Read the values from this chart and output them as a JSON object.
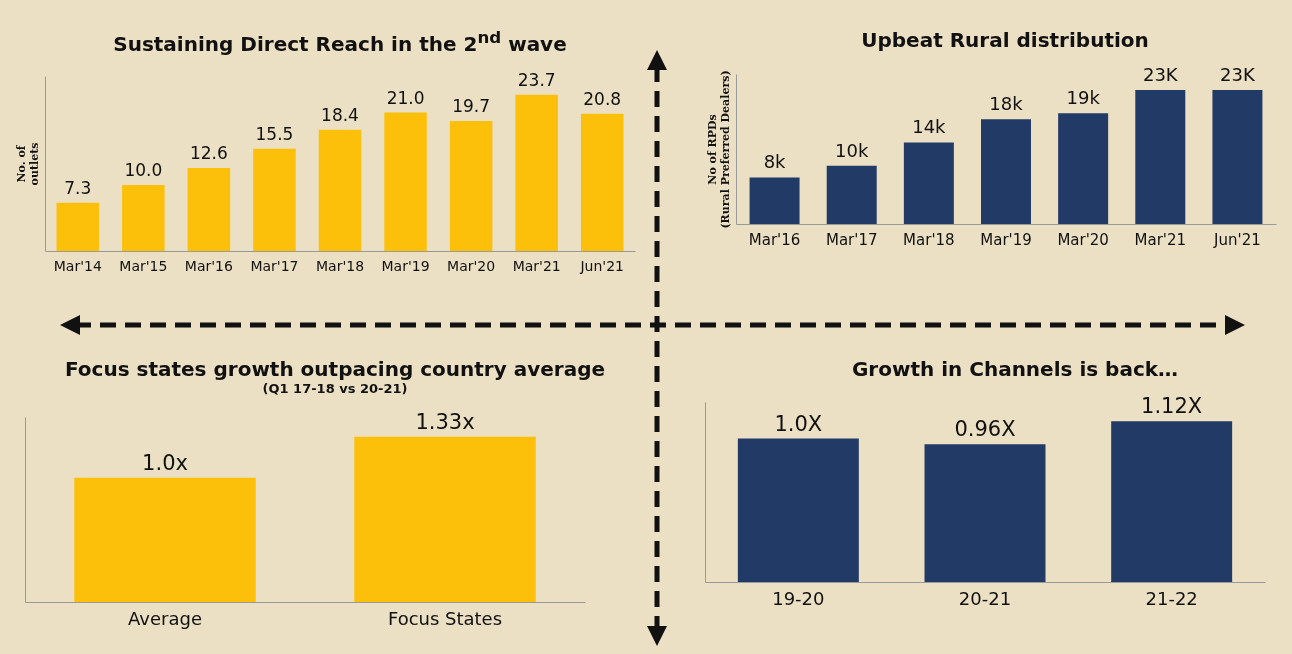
{
  "chart_data": [
    {
      "type": "bar",
      "title": "Sustaining Direct Reach in the 2$^{nd}$ wave",
      "ylabel": "No. of outlets",
      "categories": [
        "Mar'14",
        "Mar'15",
        "Mar'16",
        "Mar'17",
        "Mar'18",
        "Mar'19",
        "Mar'20",
        "Mar'21",
        "Jun'21"
      ],
      "values": [
        7.3,
        10.0,
        12.6,
        15.5,
        18.4,
        21.0,
        19.7,
        23.7,
        20.8
      ],
      "value_labels": [
        "7.3",
        "10.0",
        "12.6",
        "15.5",
        "18.4",
        "21.0",
        "19.7",
        "23.7",
        "20.8"
      ],
      "color": "#fcc00a",
      "tick_labels": "x"
    },
    {
      "type": "bar",
      "title": "Upbeat Rural distribution",
      "ylabel": "No of RPDs (Rural Preferred Dealers)",
      "categories": [
        "Mar'16",
        "Mar'17",
        "Mar'18",
        "Mar'19",
        "Mar'20",
        "Mar'21",
        "Jun'21"
      ],
      "values": [
        8,
        10,
        14,
        18,
        19,
        23,
        23
      ],
      "value_labels": [
        "8k",
        "10k",
        "14k",
        "18k",
        "19k",
        "23K",
        "23K"
      ],
      "color": "#213a66",
      "tick_labels": "x"
    },
    {
      "type": "bar",
      "title": "Focus states growth outpacing country average",
      "subtitle": "(Q1 17-18 vs 20-21)",
      "categories": [
        "Average",
        "Focus States"
      ],
      "values": [
        1.0,
        1.33
      ],
      "value_labels": [
        "1.0x",
        "1.33x"
      ],
      "color": "#fcc00a",
      "tick_labels": "x"
    },
    {
      "type": "bar",
      "title": "Growth in Channels is back…",
      "categories": [
        "19-20",
        "20-21",
        "21-22"
      ],
      "values": [
        1.0,
        0.96,
        1.12
      ],
      "value_labels": [
        "1.0X",
        "0.96X",
        "1.12X"
      ],
      "color": "#213a66",
      "tick_labels": "x"
    }
  ]
}
